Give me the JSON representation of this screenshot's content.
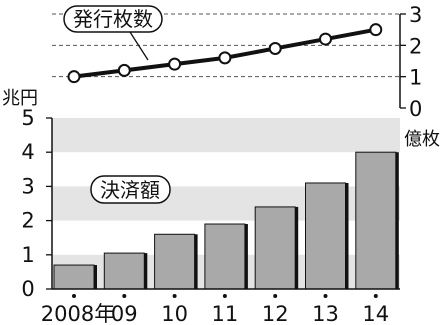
{
  "chart_data": [
    {
      "type": "line",
      "title": "発行枚数",
      "unit_label": "億枚",
      "ylim": [
        0,
        3
      ],
      "yticks": [
        "0",
        "1",
        "2",
        "3"
      ],
      "grid": true,
      "series": [
        {
          "values": [
            1.0,
            1.2,
            1.4,
            1.6,
            1.9,
            2.2,
            2.5
          ]
        }
      ]
    },
    {
      "type": "bar",
      "title": "決済額",
      "unit_label": "兆円",
      "ylim": [
        0,
        5
      ],
      "yticks": [
        "0",
        "1",
        "2",
        "3",
        "4",
        "5"
      ],
      "grid": true,
      "categories": [
        "2008年",
        "09",
        "10",
        "11",
        "12",
        "13",
        "14"
      ],
      "values": [
        0.7,
        1.05,
        1.6,
        1.9,
        2.4,
        3.1,
        4.0
      ]
    }
  ]
}
